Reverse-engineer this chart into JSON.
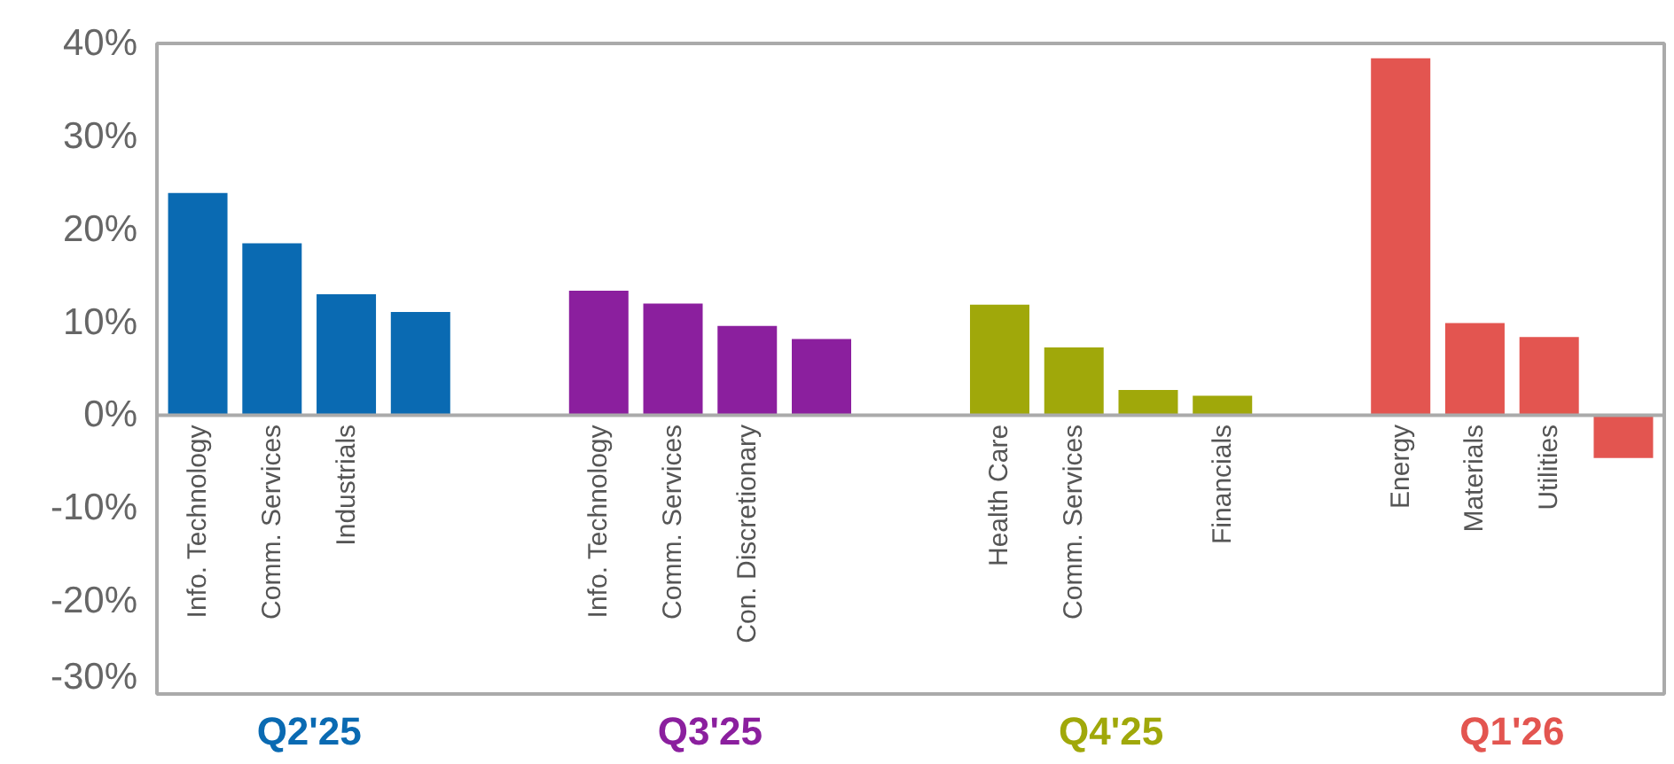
{
  "chart_data": {
    "type": "bar",
    "categories": [
      "Info. Technology",
      "Comm. Services",
      "Industrials",
      null,
      "Info. Technology",
      "Comm. Services",
      "Con. Discretionary",
      null,
      "Health Care",
      "Comm. Services",
      null,
      "Financials",
      "Energy",
      "Materials",
      "Utilities",
      null
    ],
    "series": [
      {
        "name": "Q2'25",
        "color": "#0a6ab2",
        "values": [
          23.9,
          18.5,
          13.0,
          11.1,
          null,
          null,
          null,
          null,
          null,
          null,
          null,
          null,
          null,
          null,
          null,
          null
        ]
      },
      {
        "name": "Q3'25",
        "color": "#8b1f9e",
        "values": [
          null,
          null,
          null,
          null,
          13.4,
          12.0,
          9.6,
          8.2,
          null,
          null,
          null,
          null,
          null,
          null,
          null,
          null
        ]
      },
      {
        "name": "Q4'25",
        "color": "#a0a80a",
        "values": [
          null,
          null,
          null,
          null,
          null,
          null,
          null,
          null,
          11.9,
          7.3,
          2.7,
          2.1,
          null,
          null,
          null,
          null
        ]
      },
      {
        "name": "Q1'26",
        "color": "#e35550",
        "values": [
          null,
          null,
          null,
          null,
          null,
          null,
          null,
          null,
          null,
          null,
          null,
          null,
          38.4,
          9.9,
          8.4,
          -4.6
        ]
      }
    ],
    "ylim": [
      -30,
      40
    ],
    "yticks": [
      {
        "value": -30,
        "label": "-30%"
      },
      {
        "value": -20,
        "label": "-20%"
      },
      {
        "value": -10,
        "label": "-10%"
      },
      {
        "value": 0,
        "label": "0%"
      },
      {
        "value": 10,
        "label": "10%"
      },
      {
        "value": 20,
        "label": "20%"
      },
      {
        "value": 30,
        "label": "30%"
      },
      {
        "value": 40,
        "label": "40%"
      }
    ],
    "grid": false
  }
}
